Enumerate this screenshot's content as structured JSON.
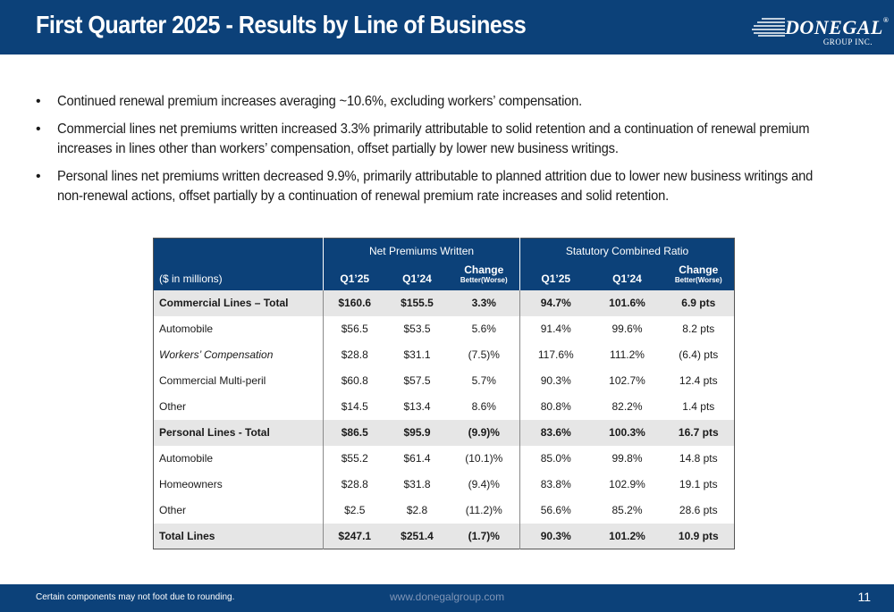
{
  "header": {
    "title": "First Quarter 2025 - Results by Line of Business",
    "logo_text": "DONEGAL",
    "logo_reg": "®",
    "logo_sub": "GROUP INC."
  },
  "bullets": [
    "Continued renewal premium increases averaging ~10.6%, excluding workers’ compensation.",
    "Commercial lines net premiums written increased 3.3% primarily attributable to solid retention and a continuation of renewal premium increases in lines other than workers’ compensation, offset partially by lower new business writings.",
    "Personal lines net premiums written decreased 9.9%, primarily attributable to planned attrition due to lower new business writings  and non-renewal actions, offset partially by a continuation of renewal premium rate increases and solid retention."
  ],
  "table": {
    "group_npw": "Net Premiums Written",
    "group_scr": "Statutory Combined Ratio",
    "units_label": "($ in millions)",
    "col_q125": "Q1’25",
    "col_q124": "Q1’24",
    "col_change": "Change",
    "col_change_sub": "Better(Worse)",
    "rows": [
      {
        "name": "Commercial Lines – Total",
        "q125": "$160.6",
        "q124": "$155.5",
        "chg": "3.3%",
        "r125": "94.7%",
        "r124": "101.6%",
        "rchg": "6.9 pts"
      },
      {
        "name": "Automobile",
        "q125": "$56.5",
        "q124": "$53.5",
        "chg": "5.6%",
        "r125": "91.4%",
        "r124": "99.6%",
        "rchg": "8.2 pts"
      },
      {
        "name": "Workers’ Compensation",
        "q125": "$28.8",
        "q124": "$31.1",
        "chg": "(7.5)%",
        "r125": "117.6%",
        "r124": "111.2%",
        "rchg": "(6.4) pts"
      },
      {
        "name": "Commercial Multi-peril",
        "q125": "$60.8",
        "q124": "$57.5",
        "chg": "5.7%",
        "r125": "90.3%",
        "r124": "102.7%",
        "rchg": "12.4 pts"
      },
      {
        "name": "Other",
        "q125": "$14.5",
        "q124": "$13.4",
        "chg": "8.6%",
        "r125": "80.8%",
        "r124": "82.2%",
        "rchg": "1.4 pts"
      },
      {
        "name": "Personal Lines - Total",
        "q125": "$86.5",
        "q124": "$95.9",
        "chg": "(9.9)%",
        "r125": "83.6%",
        "r124": "100.3%",
        "rchg": "16.7 pts"
      },
      {
        "name": "Automobile",
        "q125": "$55.2",
        "q124": "$61.4",
        "chg": "(10.1)%",
        "r125": "85.0%",
        "r124": "99.8%",
        "rchg": "14.8 pts"
      },
      {
        "name": "Homeowners",
        "q125": "$28.8",
        "q124": "$31.8",
        "chg": "(9.4)%",
        "r125": "83.8%",
        "r124": "102.9%",
        "rchg": "19.1 pts"
      },
      {
        "name": "Other",
        "q125": "$2.5",
        "q124": "$2.8",
        "chg": "(11.2)%",
        "r125": "56.6%",
        "r124": "85.2%",
        "rchg": "28.6 pts"
      },
      {
        "name": "Total Lines",
        "q125": "$247.1",
        "q124": "$251.4",
        "chg": "(1.7)%",
        "r125": "90.3%",
        "r124": "101.2%",
        "rchg": "10.9 pts"
      }
    ]
  },
  "footer": {
    "note": "Certain components may not foot due to rounding.",
    "url": "www.donegalgroup.com",
    "page": "11"
  },
  "colors": {
    "brand_blue": "#0c4179",
    "total_row_bg": "#e6e6e6"
  }
}
